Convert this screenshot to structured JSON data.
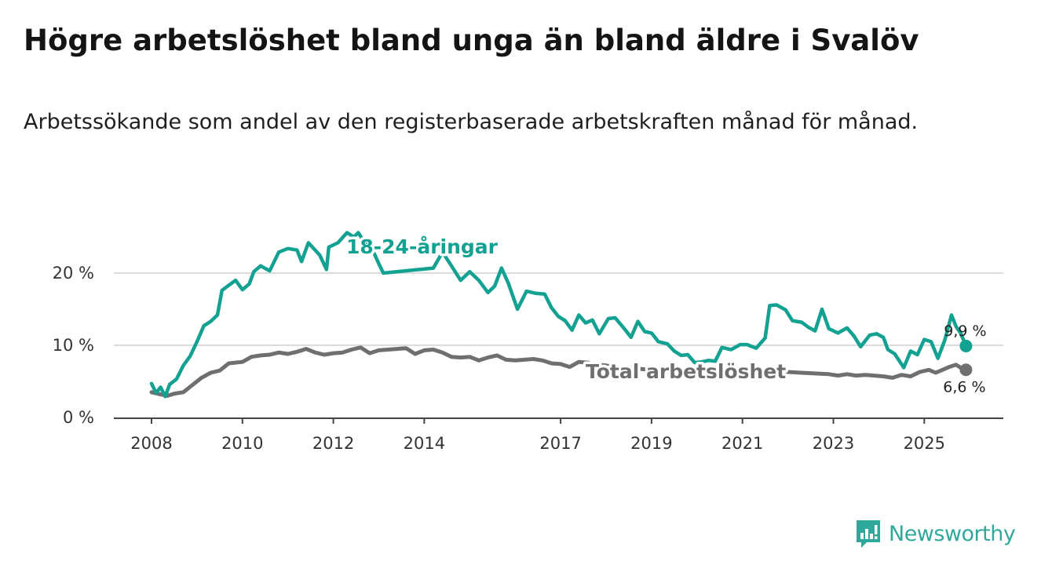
{
  "title": "Högre arbetslöshet bland unga än bland äldre i Svalöv",
  "subtitle": "Arbetssökande som andel av den registerbaserade arbetskraften månad för månad.",
  "brand": {
    "name": "Newsworthy",
    "icon": "newsworthy-logo-icon",
    "color": "#2fa89b"
  },
  "chart_data": {
    "type": "line",
    "x_range": [
      2008.0,
      2025.917
    ],
    "ylim": [
      0,
      25
    ],
    "y_ticks": [
      0,
      10,
      20
    ],
    "y_tick_labels": [
      "0 %",
      "10 %",
      "20 %"
    ],
    "x_ticks": [
      2008,
      2010,
      2012,
      2014,
      2017,
      2019,
      2021,
      2023,
      2025
    ],
    "x_tick_labels": [
      "2008",
      "2010",
      "2012",
      "2014",
      "2017",
      "2019",
      "2021",
      "2023",
      "2025"
    ],
    "grid": true,
    "series": [
      {
        "name": "18-24-åringar",
        "label": "18-24-åringar",
        "color": "#13a192",
        "end_value_label": "9,9 %",
        "points": [
          [
            2008.0,
            4.7
          ],
          [
            2008.1,
            3.4
          ],
          [
            2008.2,
            4.2
          ],
          [
            2008.3,
            2.9
          ],
          [
            2008.4,
            4.6
          ],
          [
            2008.55,
            5.3
          ],
          [
            2008.7,
            7.2
          ],
          [
            2008.85,
            8.5
          ],
          [
            2009.0,
            10.5
          ],
          [
            2009.15,
            12.7
          ],
          [
            2009.3,
            13.3
          ],
          [
            2009.45,
            14.2
          ],
          [
            2009.55,
            17.6
          ],
          [
            2009.7,
            18.3
          ],
          [
            2009.85,
            19.0
          ],
          [
            2010.0,
            17.7
          ],
          [
            2010.15,
            18.5
          ],
          [
            2010.25,
            20.2
          ],
          [
            2010.4,
            21.0
          ],
          [
            2010.6,
            20.3
          ],
          [
            2010.8,
            22.9
          ],
          [
            2011.0,
            23.4
          ],
          [
            2011.2,
            23.2
          ],
          [
            2011.3,
            21.6
          ],
          [
            2011.45,
            24.2
          ],
          [
            2011.7,
            22.5
          ],
          [
            2011.85,
            20.5
          ],
          [
            2011.9,
            23.6
          ],
          [
            2012.1,
            24.2
          ],
          [
            2012.3,
            25.6
          ],
          [
            2012.45,
            25.0
          ],
          [
            2012.55,
            25.6
          ],
          [
            2012.7,
            24.1
          ],
          [
            2012.9,
            22.7
          ],
          [
            2013.0,
            21.3
          ],
          [
            2013.1,
            20.0
          ],
          [
            2014.2,
            20.7
          ],
          [
            2014.4,
            22.9
          ],
          [
            2014.6,
            21.0
          ],
          [
            2014.8,
            19.0
          ],
          [
            2015.0,
            20.2
          ],
          [
            2015.2,
            19.0
          ],
          [
            2015.4,
            17.3
          ],
          [
            2015.55,
            18.2
          ],
          [
            2015.7,
            20.7
          ],
          [
            2015.85,
            18.6
          ],
          [
            2016.05,
            15.0
          ],
          [
            2016.25,
            17.5
          ],
          [
            2016.45,
            17.2
          ],
          [
            2016.65,
            17.1
          ],
          [
            2016.8,
            15.2
          ],
          [
            2016.95,
            14.0
          ],
          [
            2017.1,
            13.4
          ],
          [
            2017.25,
            12.1
          ],
          [
            2017.4,
            14.2
          ],
          [
            2017.55,
            13.1
          ],
          [
            2017.7,
            13.5
          ],
          [
            2017.85,
            11.6
          ],
          [
            2018.05,
            13.7
          ],
          [
            2018.2,
            13.8
          ],
          [
            2018.4,
            12.3
          ],
          [
            2018.55,
            11.1
          ],
          [
            2018.7,
            13.3
          ],
          [
            2018.85,
            11.9
          ],
          [
            2019.0,
            11.7
          ],
          [
            2019.15,
            10.5
          ],
          [
            2019.35,
            10.2
          ],
          [
            2019.5,
            9.2
          ],
          [
            2019.65,
            8.6
          ],
          [
            2019.8,
            8.7
          ],
          [
            2019.95,
            7.6
          ],
          [
            2020.1,
            7.7
          ],
          [
            2020.25,
            7.9
          ],
          [
            2020.4,
            7.8
          ],
          [
            2020.55,
            9.7
          ],
          [
            2020.75,
            9.4
          ],
          [
            2020.95,
            10.1
          ],
          [
            2021.1,
            10.1
          ],
          [
            2021.3,
            9.6
          ],
          [
            2021.5,
            11.0
          ],
          [
            2021.6,
            15.5
          ],
          [
            2021.75,
            15.6
          ],
          [
            2021.95,
            14.9
          ],
          [
            2022.1,
            13.4
          ],
          [
            2022.3,
            13.2
          ],
          [
            2022.45,
            12.5
          ],
          [
            2022.6,
            12.0
          ],
          [
            2022.75,
            15.0
          ],
          [
            2022.9,
            12.3
          ],
          [
            2023.1,
            11.7
          ],
          [
            2023.3,
            12.4
          ],
          [
            2023.45,
            11.3
          ],
          [
            2023.6,
            9.8
          ],
          [
            2023.8,
            11.4
          ],
          [
            2023.95,
            11.6
          ],
          [
            2024.1,
            11.1
          ],
          [
            2024.2,
            9.4
          ],
          [
            2024.35,
            8.8
          ],
          [
            2024.55,
            6.9
          ],
          [
            2024.7,
            9.2
          ],
          [
            2024.85,
            8.7
          ],
          [
            2025.0,
            10.8
          ],
          [
            2025.15,
            10.5
          ],
          [
            2025.3,
            8.2
          ],
          [
            2025.45,
            10.7
          ],
          [
            2025.6,
            14.2
          ],
          [
            2025.7,
            12.6
          ],
          [
            2025.8,
            11.7
          ],
          [
            2025.917,
            9.9
          ]
        ]
      },
      {
        "name": "Total arbetslöshet",
        "label": "Total arbetslöshet",
        "color": "#6f6f72",
        "end_value_label": "6,6 %",
        "points": [
          [
            2008.0,
            3.5
          ],
          [
            2008.2,
            3.2
          ],
          [
            2008.35,
            3.0
          ],
          [
            2008.5,
            3.3
          ],
          [
            2008.7,
            3.5
          ],
          [
            2008.9,
            4.5
          ],
          [
            2009.1,
            5.5
          ],
          [
            2009.3,
            6.2
          ],
          [
            2009.5,
            6.5
          ],
          [
            2009.7,
            7.5
          ],
          [
            2010.0,
            7.7
          ],
          [
            2010.2,
            8.4
          ],
          [
            2010.4,
            8.6
          ],
          [
            2010.6,
            8.7
          ],
          [
            2010.8,
            9.0
          ],
          [
            2011.0,
            8.8
          ],
          [
            2011.2,
            9.1
          ],
          [
            2011.4,
            9.5
          ],
          [
            2011.6,
            9.0
          ],
          [
            2011.8,
            8.7
          ],
          [
            2012.0,
            8.9
          ],
          [
            2012.2,
            9.0
          ],
          [
            2012.4,
            9.4
          ],
          [
            2012.6,
            9.7
          ],
          [
            2012.8,
            8.9
          ],
          [
            2013.0,
            9.3
          ],
          [
            2013.2,
            9.4
          ],
          [
            2013.4,
            9.5
          ],
          [
            2013.6,
            9.6
          ],
          [
            2013.8,
            8.8
          ],
          [
            2014.0,
            9.3
          ],
          [
            2014.2,
            9.4
          ],
          [
            2014.4,
            9.0
          ],
          [
            2014.6,
            8.4
          ],
          [
            2014.8,
            8.3
          ],
          [
            2015.0,
            8.4
          ],
          [
            2015.2,
            7.9
          ],
          [
            2015.4,
            8.3
          ],
          [
            2015.6,
            8.6
          ],
          [
            2015.8,
            8.0
          ],
          [
            2016.0,
            7.9
          ],
          [
            2016.2,
            8.0
          ],
          [
            2016.4,
            8.1
          ],
          [
            2016.6,
            7.9
          ],
          [
            2016.8,
            7.5
          ],
          [
            2017.0,
            7.4
          ],
          [
            2017.2,
            7.0
          ],
          [
            2017.4,
            7.7
          ],
          [
            2017.6,
            7.6
          ],
          [
            2017.8,
            7.3
          ],
          [
            2018.0,
            7.2
          ],
          [
            2018.2,
            7.0
          ],
          [
            2018.5,
            6.9
          ],
          [
            2018.8,
            6.7
          ],
          [
            2019.0,
            6.6
          ],
          [
            2019.3,
            6.4
          ],
          [
            2019.6,
            6.3
          ],
          [
            2019.9,
            6.5
          ],
          [
            2020.2,
            6.7
          ],
          [
            2020.5,
            6.9
          ],
          [
            2020.8,
            6.8
          ],
          [
            2021.1,
            6.6
          ],
          [
            2021.4,
            6.5
          ],
          [
            2021.7,
            6.4
          ],
          [
            2022.0,
            6.3
          ],
          [
            2022.3,
            6.2
          ],
          [
            2022.6,
            6.1
          ],
          [
            2022.9,
            6.0
          ],
          [
            2023.1,
            5.8
          ],
          [
            2023.3,
            6.0
          ],
          [
            2023.5,
            5.8
          ],
          [
            2023.7,
            5.9
          ],
          [
            2023.9,
            5.8
          ],
          [
            2024.1,
            5.7
          ],
          [
            2024.3,
            5.5
          ],
          [
            2024.5,
            5.9
          ],
          [
            2024.7,
            5.7
          ],
          [
            2024.9,
            6.3
          ],
          [
            2025.1,
            6.6
          ],
          [
            2025.25,
            6.2
          ],
          [
            2025.4,
            6.6
          ],
          [
            2025.55,
            7.0
          ],
          [
            2025.7,
            7.3
          ],
          [
            2025.8,
            6.9
          ],
          [
            2025.917,
            6.6
          ]
        ]
      }
    ]
  }
}
